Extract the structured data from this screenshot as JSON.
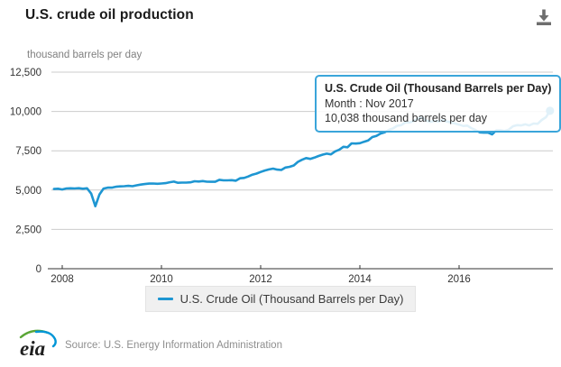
{
  "header": {
    "title": "U.S. crude oil production"
  },
  "chart": {
    "unit_label": "thousand barrels per day"
  },
  "tooltip": {
    "title": "U.S. Crude Oil (Thousand Barrels per Day)",
    "subtitle": "Month : Nov 2017",
    "value_line": "10,038 thousand barrels per day"
  },
  "legend": {
    "label": "U.S. Crude Oil (Thousand Barrels per Day)"
  },
  "footer": {
    "logo_text": "eia",
    "source": "Source: U.S. Energy Information Administration"
  },
  "colors": {
    "line": "#1e96d2",
    "marker": "#1e96d2",
    "tooltip_border": "#3aa5da",
    "grid": "#cccccc",
    "axis": "#333333",
    "axis_label": "#333333",
    "unit_label": "#808080",
    "legend_bg": "#f0f0f0",
    "source_text": "#8e8e8e",
    "icon": "#6e6e6e",
    "logo_green": "#5aa636",
    "logo_blue": "#0096d7"
  },
  "chart_data": {
    "type": "line",
    "title": "U.S. crude oil production",
    "xlabel": "",
    "ylabel": "thousand barrels per day",
    "ylim": [
      0,
      12500
    ],
    "yticks": [
      0,
      2500,
      5000,
      7500,
      10000,
      12500
    ],
    "ytick_labels": [
      "0",
      "2,500",
      "5,000",
      "7,500",
      "10,000",
      "12,500"
    ],
    "xticks": [
      "2008",
      "2010",
      "2012",
      "2014",
      "2016"
    ],
    "frequency": "monthly",
    "x_start": "2007-11",
    "x_end": "2017-11",
    "grid": "horizontal",
    "legend_position": "bottom",
    "highlight_point": {
      "month": "Nov 2017",
      "value": 10038
    },
    "series": [
      {
        "name": "U.S. Crude Oil (Thousand Barrels per Day)",
        "values": [
          5066,
          5087,
          5043,
          5104,
          5112,
          5101,
          5123,
          5087,
          5112,
          4777,
          3974,
          4727,
          5096,
          5157,
          5152,
          5213,
          5235,
          5249,
          5271,
          5248,
          5303,
          5352,
          5382,
          5413,
          5420,
          5400,
          5418,
          5444,
          5500,
          5538,
          5465,
          5476,
          5477,
          5492,
          5561,
          5545,
          5574,
          5534,
          5527,
          5529,
          5652,
          5617,
          5618,
          5628,
          5594,
          5751,
          5776,
          5866,
          5981,
          6052,
          6151,
          6242,
          6315,
          6366,
          6303,
          6277,
          6434,
          6482,
          6566,
          6797,
          6928,
          7033,
          6983,
          7066,
          7168,
          7255,
          7315,
          7270,
          7462,
          7565,
          7751,
          7724,
          7972,
          7961,
          7983,
          8073,
          8154,
          8374,
          8447,
          8597,
          8672,
          8825,
          8918,
          9088,
          9126,
          9302,
          9303,
          9385,
          9534,
          9610,
          9434,
          9342,
          9395,
          9361,
          9442,
          9362,
          9306,
          9235,
          9160,
          9076,
          9102,
          8926,
          8819,
          8672,
          8654,
          8654,
          8541,
          8805,
          8807,
          8766,
          8836,
          9056,
          9127,
          9110,
          9181,
          9110,
          9234,
          9212,
          9462,
          9632,
          10038
        ]
      }
    ]
  }
}
